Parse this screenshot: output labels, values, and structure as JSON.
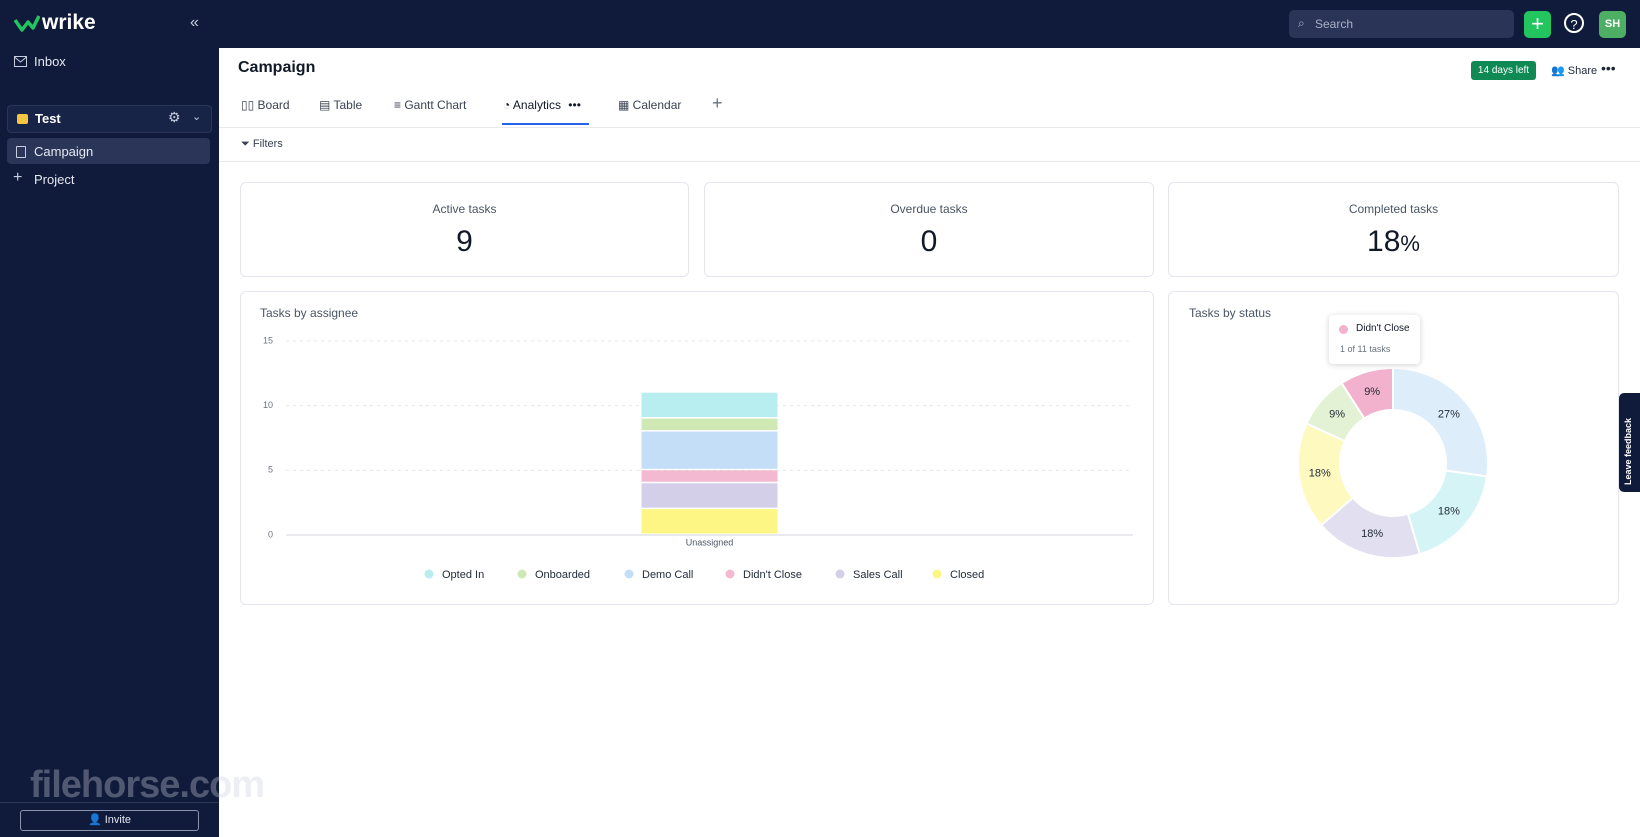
{
  "sidebar": {
    "logo": "wrike",
    "inbox": "Inbox",
    "space": "Test",
    "items": [
      "Campaign",
      "Project"
    ],
    "invite": "Invite",
    "watermark": "filehorse.com"
  },
  "topbar": {
    "search": "Search",
    "avatar": "SH"
  },
  "header": {
    "title": "Campaign",
    "badge": "14 days left",
    "share": "Share"
  },
  "tabs": [
    "Board",
    "Table",
    "Gantt Chart",
    "Analytics",
    "Calendar"
  ],
  "filters": "Filters",
  "kpis": [
    {
      "label": "Active tasks",
      "value": "9"
    },
    {
      "label": "Overdue tasks",
      "value": "0"
    },
    {
      "label": "Completed tasks",
      "value": "18",
      "unit": "%"
    }
  ],
  "chart_data": [
    {
      "type": "bar",
      "stacked": true,
      "title": "Tasks by assignee",
      "categories": [
        "Unassigned"
      ],
      "series": [
        {
          "name": "Opted In",
          "color": "#b9eef1",
          "values": [
            2
          ]
        },
        {
          "name": "Onboarded",
          "color": "#cfe9b4",
          "values": [
            1
          ]
        },
        {
          "name": "Demo Call",
          "color": "#c3def6",
          "values": [
            3
          ]
        },
        {
          "name": "Didn't Close",
          "color": "#f3b9d1",
          "values": [
            1
          ]
        },
        {
          "name": "Sales Call",
          "color": "#d3cfe8",
          "values": [
            2
          ]
        },
        {
          "name": "Closed",
          "color": "#fdf685",
          "values": [
            2
          ]
        }
      ],
      "ylim": [
        0,
        15
      ],
      "yticks": [
        0,
        5,
        10,
        15
      ],
      "grid": true
    },
    {
      "type": "pie",
      "donut": true,
      "title": "Tasks by status",
      "values": [
        27,
        18,
        18,
        18,
        9,
        9
      ],
      "value_labels": [
        "27%",
        "18%",
        "18%",
        "18%",
        "9%",
        "9%"
      ],
      "colors": [
        "#ddedf9",
        "#d5f4f6",
        "#e1dff0",
        "#fdf9bf",
        "#e3f1d4",
        "#f2b1cc"
      ]
    }
  ],
  "tooltip": {
    "title": "Didn't Close",
    "text": "1 of 11 tasks"
  },
  "feedback": "Leave feedback"
}
